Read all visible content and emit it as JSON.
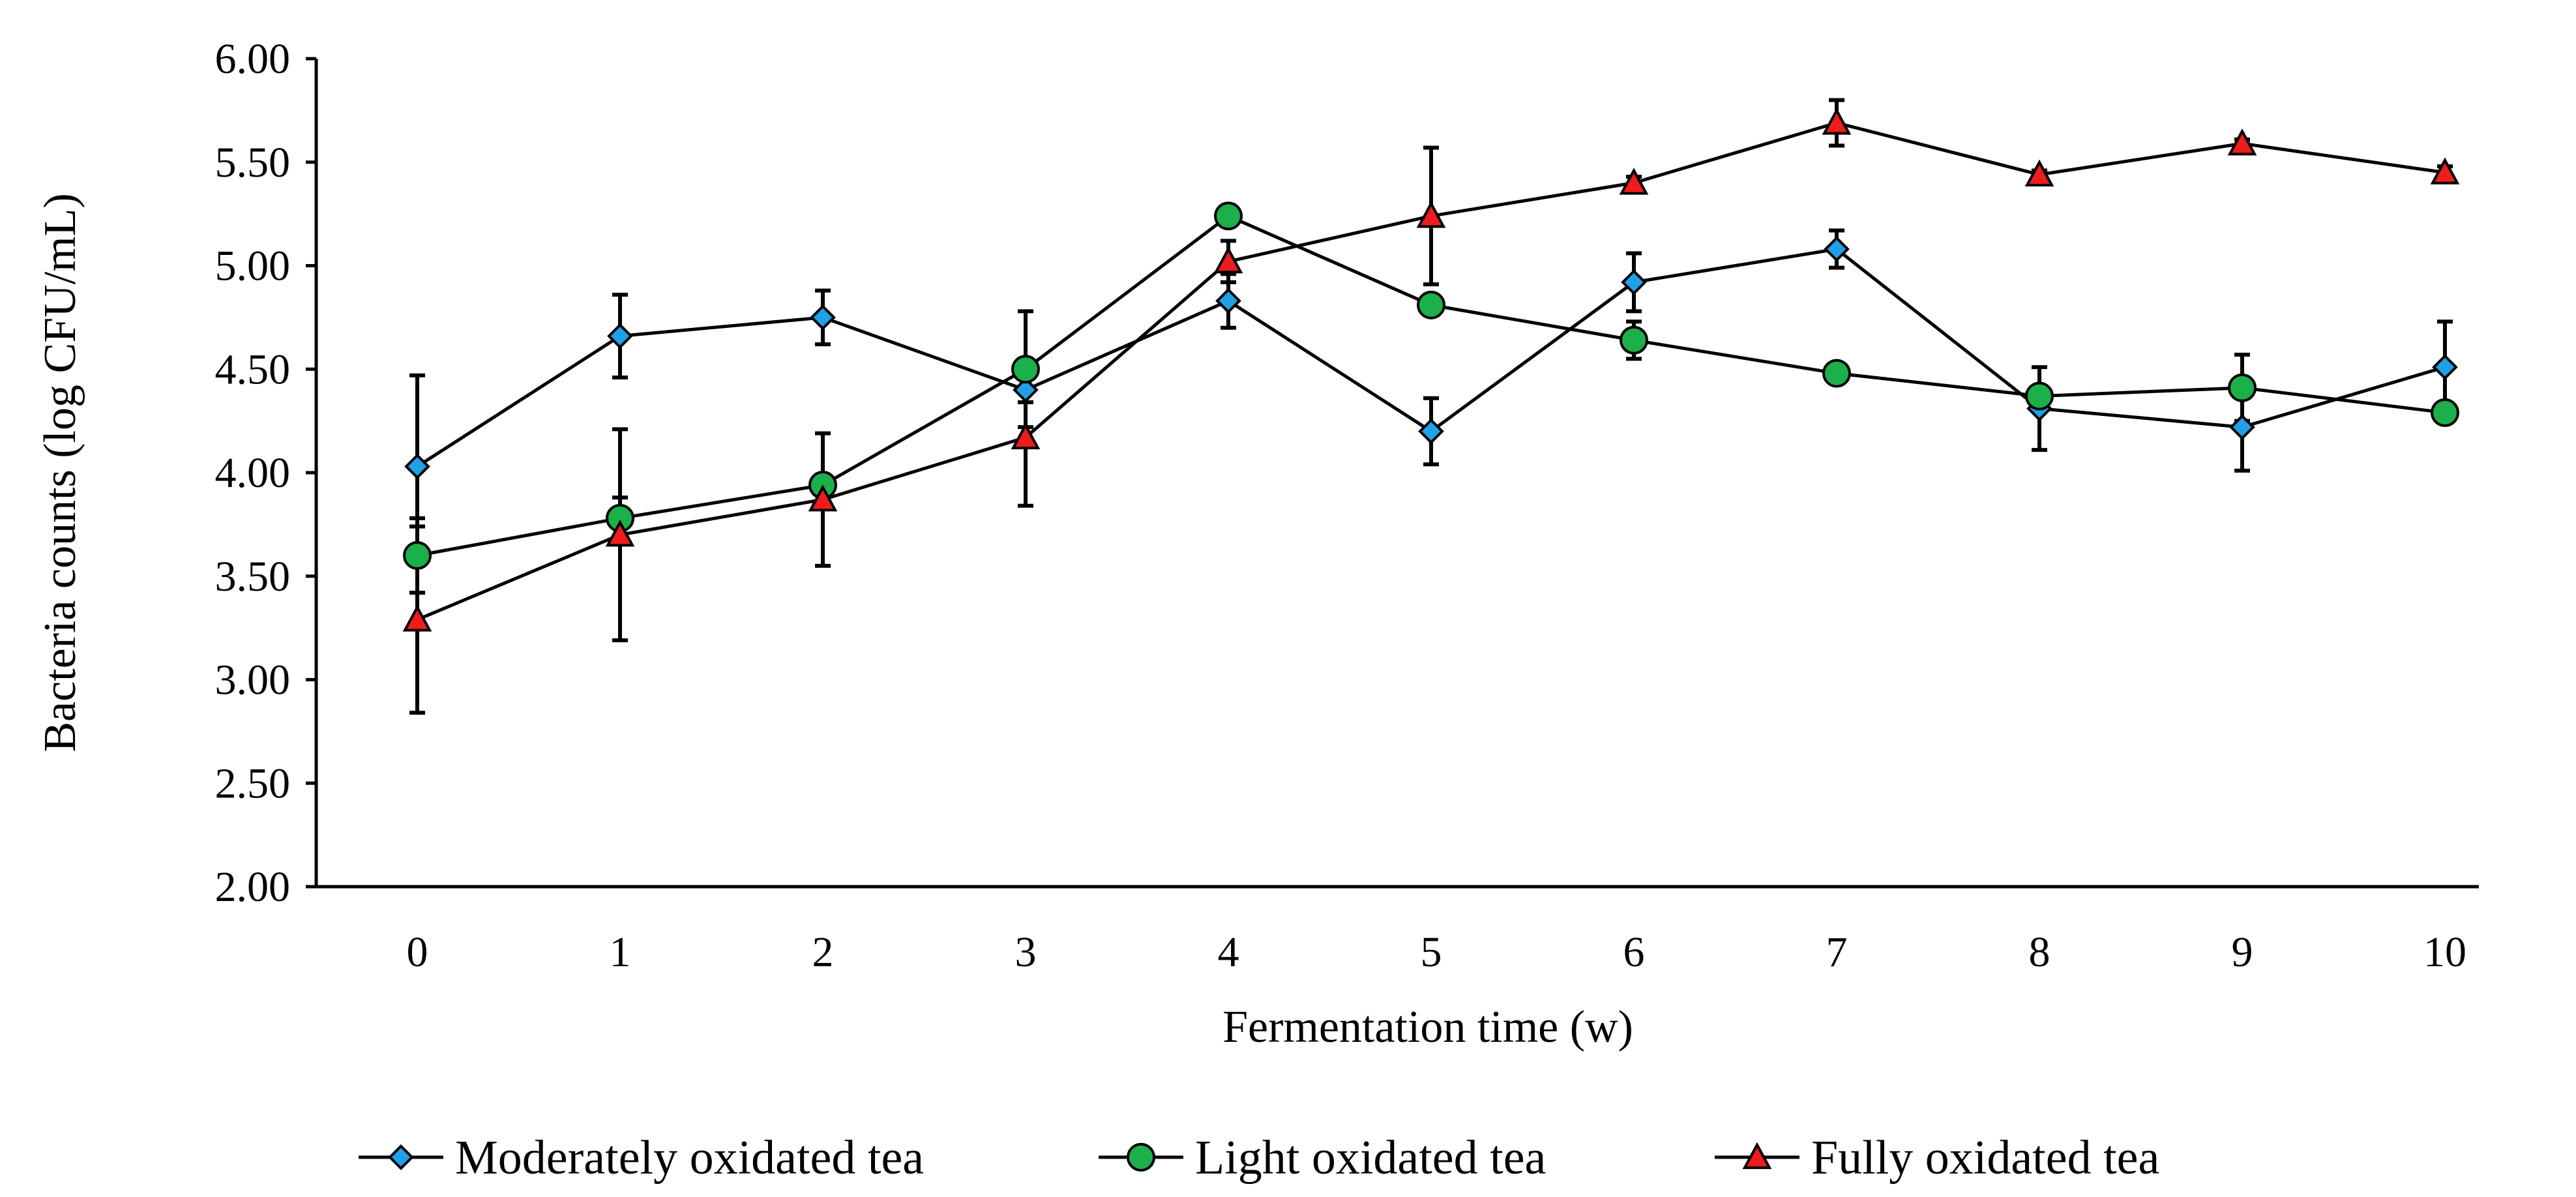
{
  "chart_data": {
    "type": "line",
    "title": "",
    "xlabel": "Fermentation time (w)",
    "ylabel": "Bacteria counts (log CFU/mL)",
    "x": [
      0,
      1,
      2,
      3,
      4,
      5,
      6,
      7,
      8,
      9,
      10
    ],
    "x_tick_labels": [
      "0",
      "1",
      "2",
      "3",
      "4",
      "5",
      "6",
      "7",
      "8",
      "9",
      "10"
    ],
    "ylim": [
      2.0,
      6.0
    ],
    "y_ticks": [
      2.0,
      2.5,
      3.0,
      3.5,
      4.0,
      4.5,
      5.0,
      5.5,
      6.0
    ],
    "y_tick_labels": [
      "2.00",
      "2.50",
      "3.00",
      "3.50",
      "4.00",
      "4.50",
      "5.00",
      "5.50",
      "6.00"
    ],
    "legend_position": "bottom",
    "series": [
      {
        "name": "Moderately oxidated tea",
        "marker": "diamond",
        "color": "#1fa1e8",
        "values": [
          4.03,
          4.66,
          4.75,
          4.4,
          4.83,
          4.2,
          4.92,
          5.08,
          4.31,
          4.22,
          4.51
        ],
        "errors": [
          0.44,
          0.2,
          0.13,
          0.06,
          0.13,
          0.16,
          0.14,
          0.09,
          0.2,
          0.21,
          0.22
        ]
      },
      {
        "name": "Light oxidated tea",
        "marker": "circle",
        "color": "#1bb04a",
        "values": [
          3.6,
          3.78,
          3.94,
          4.5,
          5.24,
          4.81,
          4.64,
          4.48,
          4.37,
          4.41,
          4.29
        ],
        "errors": [
          0.18,
          0.1,
          0.05,
          0.28,
          0.05,
          0.05,
          0.09,
          0.04,
          0.02,
          0.16,
          0.03
        ]
      },
      {
        "name": "Fully oxidated tea",
        "marker": "triangle",
        "color": "#ee1c1c",
        "values": [
          3.29,
          3.7,
          3.87,
          4.17,
          5.02,
          5.24,
          5.4,
          5.69,
          5.44,
          5.59,
          5.45
        ],
        "errors": [
          0.45,
          0.51,
          0.32,
          0.33,
          0.1,
          0.33,
          0.03,
          0.11,
          0.02,
          0.02,
          0.03
        ]
      }
    ]
  }
}
